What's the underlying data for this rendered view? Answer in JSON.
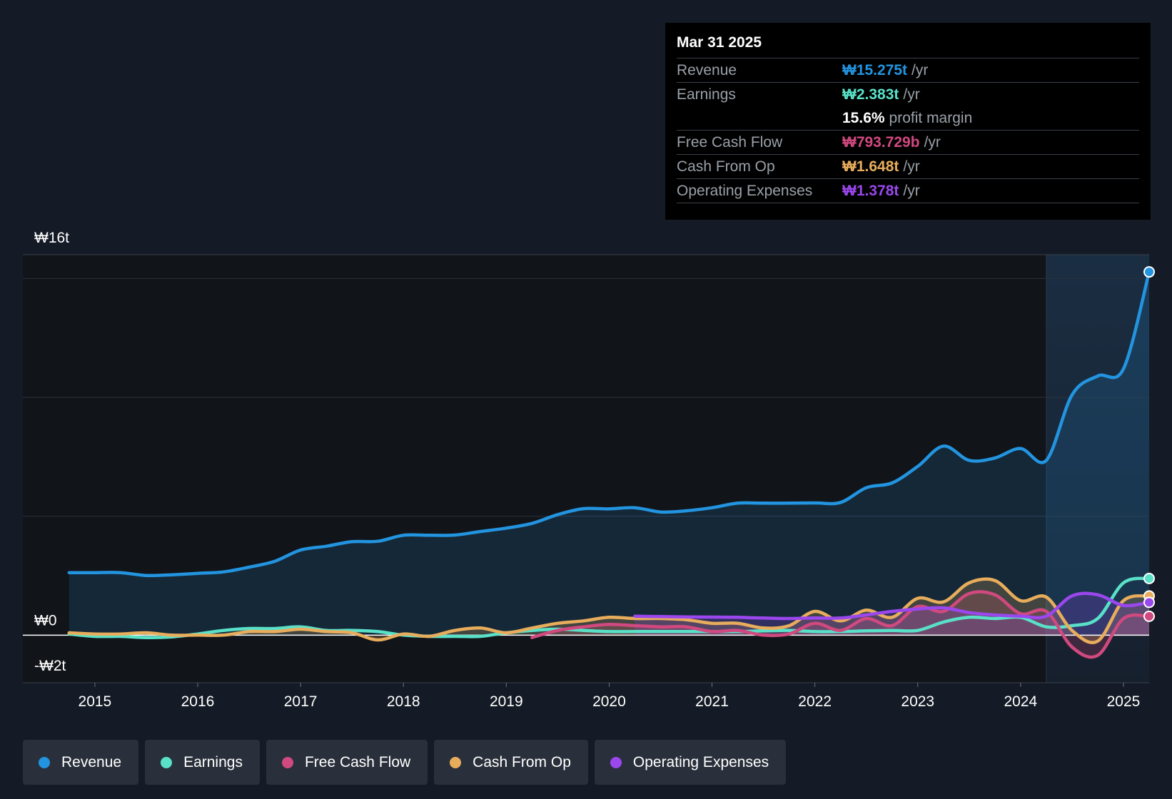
{
  "tooltip": {
    "date": "Mar 31 2025",
    "rows": [
      {
        "label": "Revenue",
        "value": "₩15.275t",
        "unit": "/yr",
        "color": "#2394df"
      },
      {
        "label": "Earnings",
        "value": "₩2.383t",
        "unit": "/yr",
        "color": "#59e1c8"
      },
      {
        "label": "",
        "value": "15.6%",
        "unit": "profit margin",
        "color": "#ffffff"
      },
      {
        "label": "Free Cash Flow",
        "value": "₩793.729b",
        "unit": "/yr",
        "color": "#d0497f"
      },
      {
        "label": "Cash From Op",
        "value": "₩1.648t",
        "unit": "/yr",
        "color": "#e8ad5c"
      },
      {
        "label": "Operating Expenses",
        "value": "₩1.378t",
        "unit": "/yr",
        "color": "#9a47ed"
      }
    ]
  },
  "legend": [
    {
      "label": "Revenue",
      "color": "#2394df"
    },
    {
      "label": "Earnings",
      "color": "#59e1c8"
    },
    {
      "label": "Free Cash Flow",
      "color": "#d0497f"
    },
    {
      "label": "Cash From Op",
      "color": "#e8ad5c"
    },
    {
      "label": "Operating Expenses",
      "color": "#9a47ed"
    }
  ],
  "chart_data": {
    "type": "line",
    "ylim": [
      -2,
      16
    ],
    "y_tick_labels": [
      {
        "value": 16,
        "label": "₩16t"
      },
      {
        "value": 0,
        "label": "₩0"
      },
      {
        "value": -2,
        "label": "-₩2t"
      }
    ],
    "gridlines": [
      15,
      10,
      5
    ],
    "xlim": [
      2014.3,
      2025.25
    ],
    "x_ticks": [
      2015,
      2016,
      2017,
      2018,
      2019,
      2020,
      2021,
      2022,
      2023,
      2024,
      2025
    ],
    "x_tick_labels": [
      "2015",
      "2016",
      "2017",
      "2018",
      "2019",
      "2020",
      "2021",
      "2022",
      "2023",
      "2024",
      "2025"
    ],
    "forecast_shade_from": 2024.25,
    "series": [
      {
        "name": "Revenue",
        "color": "#2394df",
        "area": true,
        "x": [
          2014.75,
          2015.0,
          2015.25,
          2015.5,
          2015.75,
          2016.0,
          2016.25,
          2016.5,
          2016.75,
          2017.0,
          2017.25,
          2017.5,
          2017.75,
          2018.0,
          2018.25,
          2018.5,
          2018.75,
          2019.0,
          2019.25,
          2019.5,
          2019.75,
          2020.0,
          2020.25,
          2020.5,
          2020.75,
          2021.0,
          2021.25,
          2021.5,
          2021.75,
          2022.0,
          2022.25,
          2022.5,
          2022.75,
          2023.0,
          2023.25,
          2023.5,
          2023.75,
          2024.0,
          2024.25,
          2024.5,
          2024.75,
          2025.0,
          2025.25
        ],
        "y": [
          2.63,
          2.63,
          2.63,
          2.51,
          2.54,
          2.6,
          2.66,
          2.86,
          3.11,
          3.58,
          3.74,
          3.93,
          3.95,
          4.2,
          4.2,
          4.21,
          4.36,
          4.5,
          4.7,
          5.07,
          5.32,
          5.31,
          5.36,
          5.18,
          5.23,
          5.36,
          5.55,
          5.55,
          5.55,
          5.56,
          5.58,
          6.2,
          6.4,
          7.1,
          7.95,
          7.35,
          7.45,
          7.85,
          7.35,
          10.1,
          10.9,
          11.2,
          15.275
        ]
      },
      {
        "name": "Earnings",
        "color": "#59e1c8",
        "x": [
          2014.75,
          2015.0,
          2015.25,
          2015.5,
          2015.75,
          2016.0,
          2016.25,
          2016.5,
          2016.75,
          2017.0,
          2017.25,
          2017.5,
          2017.75,
          2018.0,
          2018.25,
          2018.5,
          2018.75,
          2019.0,
          2019.25,
          2019.5,
          2019.75,
          2020.0,
          2020.25,
          2020.5,
          2020.75,
          2021.0,
          2021.25,
          2021.5,
          2021.75,
          2022.0,
          2022.25,
          2022.5,
          2022.75,
          2023.0,
          2023.25,
          2023.5,
          2023.75,
          2024.0,
          2024.25,
          2024.5,
          2024.75,
          2025.0,
          2025.25
        ],
        "y": [
          0.05,
          -0.05,
          -0.05,
          -0.1,
          -0.07,
          0.05,
          0.2,
          0.28,
          0.28,
          0.35,
          0.2,
          0.2,
          0.15,
          0.0,
          -0.05,
          -0.05,
          -0.05,
          0.1,
          0.2,
          0.25,
          0.2,
          0.15,
          0.15,
          0.15,
          0.15,
          0.15,
          0.15,
          0.18,
          0.2,
          0.15,
          0.15,
          0.18,
          0.2,
          0.2,
          0.55,
          0.75,
          0.7,
          0.75,
          0.35,
          0.4,
          0.7,
          2.2,
          2.383
        ]
      },
      {
        "name": "Free Cash Flow",
        "color": "#d0497f",
        "area": true,
        "x": [
          2019.25,
          2019.5,
          2019.75,
          2020.0,
          2020.25,
          2020.5,
          2020.75,
          2021.0,
          2021.25,
          2021.5,
          2021.75,
          2022.0,
          2022.25,
          2022.5,
          2022.75,
          2023.0,
          2023.25,
          2023.5,
          2023.75,
          2024.0,
          2024.25,
          2024.5,
          2024.75,
          2025.0,
          2025.25
        ],
        "y": [
          -0.1,
          0.2,
          0.35,
          0.45,
          0.4,
          0.35,
          0.35,
          0.15,
          0.2,
          0.0,
          0.05,
          0.5,
          0.2,
          0.7,
          0.4,
          1.2,
          1.0,
          1.75,
          1.7,
          0.9,
          1.0,
          -0.5,
          -0.85,
          0.7,
          0.794
        ]
      },
      {
        "name": "Cash From Op",
        "color": "#e8ad5c",
        "area": true,
        "x": [
          2014.75,
          2015.0,
          2015.25,
          2015.5,
          2015.75,
          2016.0,
          2016.25,
          2016.5,
          2016.75,
          2017.0,
          2017.25,
          2017.5,
          2017.75,
          2018.0,
          2018.25,
          2018.5,
          2018.75,
          2019.0,
          2019.25,
          2019.5,
          2019.75,
          2020.0,
          2020.25,
          2020.5,
          2020.75,
          2021.0,
          2021.25,
          2021.5,
          2021.75,
          2022.0,
          2022.25,
          2022.5,
          2022.75,
          2023.0,
          2023.25,
          2023.5,
          2023.75,
          2024.0,
          2024.25,
          2024.5,
          2024.75,
          2025.0,
          2025.25
        ],
        "y": [
          0.1,
          0.05,
          0.05,
          0.1,
          0.0,
          0.0,
          0.0,
          0.15,
          0.15,
          0.25,
          0.15,
          0.1,
          -0.2,
          0.05,
          -0.05,
          0.2,
          0.3,
          0.1,
          0.3,
          0.5,
          0.6,
          0.75,
          0.7,
          0.7,
          0.65,
          0.5,
          0.5,
          0.3,
          0.4,
          1.0,
          0.6,
          1.05,
          0.75,
          1.55,
          1.4,
          2.2,
          2.3,
          1.45,
          1.6,
          0.2,
          -0.25,
          1.45,
          1.648
        ]
      },
      {
        "name": "Operating Expenses",
        "color": "#9a47ed",
        "area": true,
        "x": [
          2020.25,
          2020.5,
          2020.75,
          2021.0,
          2021.25,
          2021.5,
          2021.75,
          2022.0,
          2022.25,
          2022.5,
          2022.75,
          2023.0,
          2023.25,
          2023.5,
          2023.75,
          2024.0,
          2024.25,
          2024.5,
          2024.75,
          2025.0,
          2025.25
        ],
        "y": [
          0.8,
          0.78,
          0.77,
          0.76,
          0.75,
          0.72,
          0.7,
          0.72,
          0.72,
          0.85,
          1.0,
          1.1,
          1.15,
          0.95,
          0.85,
          0.8,
          0.8,
          1.65,
          1.7,
          1.25,
          1.378
        ]
      }
    ]
  }
}
